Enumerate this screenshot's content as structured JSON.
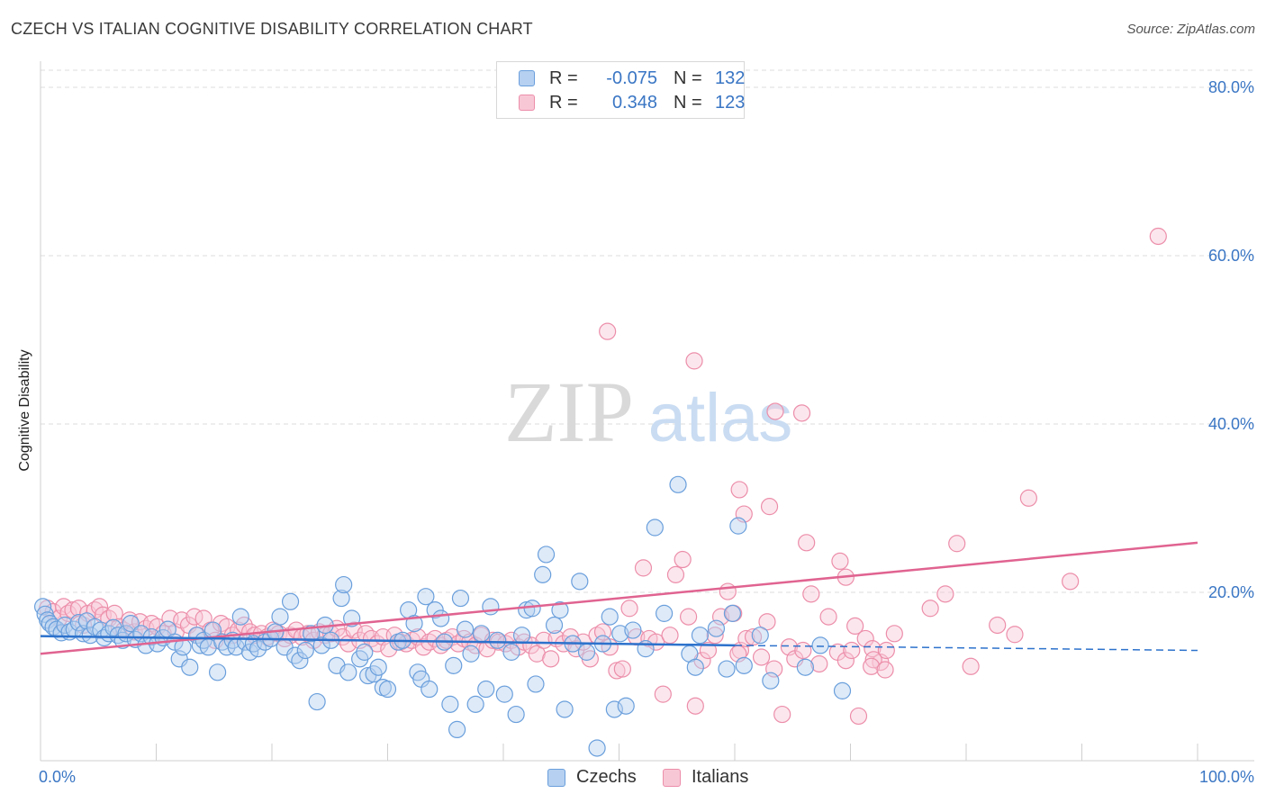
{
  "title": "CZECH VS ITALIAN COGNITIVE DISABILITY CORRELATION CHART",
  "source": "Source: ZipAtlas.com",
  "watermark": {
    "zip": "ZIP",
    "atlas": "atlas"
  },
  "legend": {
    "rows": [
      {
        "r_label": "R =",
        "r_value": "-0.075",
        "n_label": "N =",
        "n_value": "132"
      },
      {
        "r_label": "R =",
        "r_value": "0.348",
        "n_label": "N =",
        "n_value": "123"
      }
    ]
  },
  "bottom_legend": [
    "Czechs",
    "Italians"
  ],
  "colors": {
    "czech_fill": "#b5d0f0",
    "czech_stroke": "#6a9fdc",
    "czech_line": "#2d72cc",
    "italian_fill": "#f8c7d6",
    "italian_stroke": "#ec8eaa",
    "italian_line": "#e06390",
    "tick_label": "#3a76c4",
    "grid": "#dddddd"
  },
  "chart_data": {
    "type": "scatter",
    "title": "CZECH VS ITALIAN COGNITIVE DISABILITY CORRELATION CHART",
    "xlabel": "",
    "ylabel": "Cognitive Disability",
    "xlim": [
      0,
      100
    ],
    "ylim": [
      0,
      80
    ],
    "x_tick_labels": [
      "0.0%",
      "100.0%"
    ],
    "y_ticks": [
      20,
      40,
      60,
      80
    ],
    "y_tick_labels": [
      "20.0%",
      "40.0%",
      "60.0%",
      "80.0%"
    ],
    "grid": true,
    "legend_position": "top-center",
    "series": [
      {
        "name": "Czechs",
        "r": -0.075,
        "n": 132,
        "trend": {
          "x": [
            0,
            60,
            100
          ],
          "y": [
            14.8,
            13.7,
            13.1
          ],
          "solid_until": 60
        },
        "points": [
          [
            0.2,
            18.3
          ],
          [
            0.4,
            17.4
          ],
          [
            0.6,
            16.7
          ],
          [
            0.8,
            16.3
          ],
          [
            1.1,
            15.9
          ],
          [
            1.4,
            15.6
          ],
          [
            1.8,
            15.2
          ],
          [
            2.1,
            16.1
          ],
          [
            2.5,
            15.3
          ],
          [
            2.9,
            15.6
          ],
          [
            3.3,
            16.4
          ],
          [
            3.7,
            15.1
          ],
          [
            4.0,
            16.6
          ],
          [
            4.3,
            14.9
          ],
          [
            4.7,
            15.9
          ],
          [
            5.2,
            15.5
          ],
          [
            5.5,
            14.6
          ],
          [
            5.9,
            15.1
          ],
          [
            6.3,
            15.8
          ],
          [
            6.7,
            14.9
          ],
          [
            7.1,
            14.3
          ],
          [
            7.4,
            15.1
          ],
          [
            7.8,
            16.3
          ],
          [
            8.2,
            14.4
          ],
          [
            8.7,
            15.1
          ],
          [
            9.1,
            13.7
          ],
          [
            9.6,
            14.7
          ],
          [
            10.1,
            13.9
          ],
          [
            10.6,
            14.6
          ],
          [
            11.0,
            15.6
          ],
          [
            11.6,
            14.1
          ],
          [
            12.0,
            12.1
          ],
          [
            12.3,
            13.5
          ],
          [
            12.9,
            11.1
          ],
          [
            13.5,
            14.9
          ],
          [
            13.8,
            13.7
          ],
          [
            14.1,
            14.3
          ],
          [
            14.5,
            13.5
          ],
          [
            14.9,
            15.5
          ],
          [
            15.3,
            10.5
          ],
          [
            15.7,
            14.1
          ],
          [
            16.1,
            13.5
          ],
          [
            16.6,
            14.3
          ],
          [
            16.9,
            13.5
          ],
          [
            17.3,
            17.1
          ],
          [
            17.7,
            14.1
          ],
          [
            18.1,
            12.9
          ],
          [
            18.4,
            13.9
          ],
          [
            18.8,
            13.3
          ],
          [
            19.4,
            14.1
          ],
          [
            19.9,
            14.5
          ],
          [
            20.3,
            15.3
          ],
          [
            20.7,
            17.1
          ],
          [
            21.1,
            13.5
          ],
          [
            21.6,
            18.9
          ],
          [
            22.0,
            12.5
          ],
          [
            22.4,
            11.9
          ],
          [
            22.9,
            13.1
          ],
          [
            23.4,
            15.1
          ],
          [
            23.9,
            7.0
          ],
          [
            24.3,
            13.7
          ],
          [
            24.6,
            16.1
          ],
          [
            25.1,
            14.3
          ],
          [
            25.6,
            11.3
          ],
          [
            26.0,
            19.3
          ],
          [
            26.2,
            20.9
          ],
          [
            26.6,
            10.5
          ],
          [
            26.9,
            16.9
          ],
          [
            27.6,
            12.1
          ],
          [
            28.0,
            12.9
          ],
          [
            28.3,
            10.1
          ],
          [
            28.8,
            10.3
          ],
          [
            29.2,
            11.1
          ],
          [
            29.6,
            8.7
          ],
          [
            30.0,
            8.5
          ],
          [
            30.9,
            14.1
          ],
          [
            31.3,
            14.3
          ],
          [
            31.8,
            17.9
          ],
          [
            32.3,
            16.3
          ],
          [
            32.6,
            10.5
          ],
          [
            32.9,
            9.7
          ],
          [
            33.3,
            19.5
          ],
          [
            33.6,
            8.5
          ],
          [
            34.1,
            17.9
          ],
          [
            34.6,
            16.9
          ],
          [
            34.9,
            14.1
          ],
          [
            35.4,
            6.7
          ],
          [
            35.7,
            11.3
          ],
          [
            36.0,
            3.7
          ],
          [
            36.3,
            19.3
          ],
          [
            36.7,
            15.6
          ],
          [
            37.2,
            12.7
          ],
          [
            37.6,
            6.7
          ],
          [
            38.1,
            15.1
          ],
          [
            38.5,
            8.5
          ],
          [
            38.9,
            18.3
          ],
          [
            39.5,
            14.3
          ],
          [
            40.1,
            7.9
          ],
          [
            40.7,
            12.9
          ],
          [
            41.1,
            5.5
          ],
          [
            41.6,
            14.9
          ],
          [
            42.0,
            17.9
          ],
          [
            42.5,
            18.1
          ],
          [
            42.8,
            9.1
          ],
          [
            43.4,
            22.1
          ],
          [
            43.7,
            24.5
          ],
          [
            44.4,
            16.1
          ],
          [
            44.9,
            17.9
          ],
          [
            45.3,
            6.1
          ],
          [
            46.0,
            13.9
          ],
          [
            46.6,
            21.3
          ],
          [
            47.2,
            12.9
          ],
          [
            48.1,
            1.5
          ],
          [
            48.6,
            13.9
          ],
          [
            49.2,
            17.1
          ],
          [
            49.6,
            6.1
          ],
          [
            50.1,
            15.1
          ],
          [
            50.6,
            6.5
          ],
          [
            51.2,
            15.5
          ],
          [
            52.3,
            13.3
          ],
          [
            53.1,
            27.7
          ],
          [
            53.9,
            17.5
          ],
          [
            55.1,
            32.8
          ],
          [
            56.1,
            12.7
          ],
          [
            56.6,
            11.1
          ],
          [
            57.0,
            14.9
          ],
          [
            58.4,
            15.7
          ],
          [
            59.3,
            10.9
          ],
          [
            59.8,
            17.5
          ],
          [
            60.3,
            27.9
          ],
          [
            60.8,
            11.3
          ],
          [
            62.2,
            14.9
          ],
          [
            63.1,
            9.5
          ],
          [
            66.1,
            11.1
          ],
          [
            67.4,
            13.7
          ],
          [
            69.3,
            8.3
          ]
        ]
      },
      {
        "name": "Italians",
        "r": 0.348,
        "n": 123,
        "trend": {
          "x": [
            0,
            100
          ],
          "y": [
            12.7,
            25.9
          ]
        },
        "points": [
          [
            0.6,
            18.1
          ],
          [
            1.1,
            17.7
          ],
          [
            1.6,
            16.9
          ],
          [
            2.0,
            18.3
          ],
          [
            2.4,
            17.5
          ],
          [
            2.8,
            17.9
          ],
          [
            3.3,
            18.1
          ],
          [
            3.7,
            16.1
          ],
          [
            4.1,
            17.5
          ],
          [
            4.7,
            17.9
          ],
          [
            5.1,
            18.3
          ],
          [
            5.4,
            17.3
          ],
          [
            5.9,
            16.9
          ],
          [
            6.4,
            17.5
          ],
          [
            6.8,
            15.9
          ],
          [
            7.2,
            15.5
          ],
          [
            7.7,
            16.7
          ],
          [
            8.1,
            15.3
          ],
          [
            8.6,
            16.5
          ],
          [
            9.1,
            15.7
          ],
          [
            9.6,
            16.3
          ],
          [
            10.1,
            15.9
          ],
          [
            10.6,
            15.1
          ],
          [
            11.2,
            16.9
          ],
          [
            11.7,
            15.3
          ],
          [
            12.2,
            16.7
          ],
          [
            12.8,
            16.1
          ],
          [
            13.3,
            17.1
          ],
          [
            13.6,
            14.9
          ],
          [
            14.1,
            16.9
          ],
          [
            14.7,
            15.5
          ],
          [
            15.1,
            14.3
          ],
          [
            15.6,
            16.3
          ],
          [
            16.1,
            15.9
          ],
          [
            16.6,
            14.9
          ],
          [
            17.1,
            15.5
          ],
          [
            17.6,
            16.1
          ],
          [
            18.1,
            15.3
          ],
          [
            18.5,
            14.9
          ],
          [
            19.1,
            15.1
          ],
          [
            19.6,
            14.7
          ],
          [
            20.1,
            15.5
          ],
          [
            20.6,
            15.1
          ],
          [
            21.1,
            14.5
          ],
          [
            21.6,
            14.9
          ],
          [
            22.1,
            15.5
          ],
          [
            22.6,
            14.7
          ],
          [
            23.1,
            15.1
          ],
          [
            23.6,
            14.3
          ],
          [
            24.1,
            15.3
          ],
          [
            24.6,
            14.9
          ],
          [
            25.1,
            15.1
          ],
          [
            25.6,
            15.7
          ],
          [
            26.1,
            14.7
          ],
          [
            26.6,
            13.9
          ],
          [
            27.1,
            15.5
          ],
          [
            27.6,
            14.3
          ],
          [
            28.1,
            15.1
          ],
          [
            28.6,
            14.5
          ],
          [
            29.1,
            13.9
          ],
          [
            29.6,
            14.7
          ],
          [
            30.1,
            13.3
          ],
          [
            30.6,
            14.9
          ],
          [
            31.1,
            14.1
          ],
          [
            31.6,
            13.9
          ],
          [
            32.1,
            14.3
          ],
          [
            32.6,
            14.7
          ],
          [
            33.1,
            13.5
          ],
          [
            33.6,
            14.1
          ],
          [
            34.1,
            14.5
          ],
          [
            34.6,
            13.7
          ],
          [
            35.1,
            14.3
          ],
          [
            35.6,
            14.7
          ],
          [
            36.1,
            13.9
          ],
          [
            36.6,
            14.5
          ],
          [
            37.1,
            14.1
          ],
          [
            37.6,
            13.7
          ],
          [
            38.1,
            14.9
          ],
          [
            38.6,
            13.3
          ],
          [
            39.1,
            14.3
          ],
          [
            39.6,
            14.1
          ],
          [
            40.2,
            13.9
          ],
          [
            40.7,
            14.3
          ],
          [
            41.3,
            13.5
          ],
          [
            41.8,
            14.1
          ],
          [
            42.4,
            13.7
          ],
          [
            42.9,
            12.7
          ],
          [
            43.5,
            14.3
          ],
          [
            44.1,
            12.1
          ],
          [
            44.6,
            14.5
          ],
          [
            45.2,
            13.9
          ],
          [
            45.8,
            14.7
          ],
          [
            46.3,
            13.3
          ],
          [
            46.9,
            14.1
          ],
          [
            47.5,
            12.1
          ],
          [
            48.1,
            14.9
          ],
          [
            48.6,
            15.3
          ],
          [
            49.2,
            13.5
          ],
          [
            49.8,
            10.7
          ],
          [
            50.3,
            10.9
          ],
          [
            50.9,
            18.1
          ],
          [
            51.5,
            14.7
          ],
          [
            52.1,
            22.9
          ],
          [
            52.6,
            14.5
          ],
          [
            53.2,
            14.1
          ],
          [
            53.8,
            7.9
          ],
          [
            54.4,
            14.9
          ],
          [
            54.9,
            22.1
          ],
          [
            55.5,
            23.9
          ],
          [
            56.0,
            17.1
          ],
          [
            56.6,
            6.5
          ],
          [
            57.2,
            11.9
          ],
          [
            57.7,
            13.1
          ],
          [
            58.3,
            14.9
          ],
          [
            58.8,
            17.1
          ],
          [
            59.4,
            20.1
          ],
          [
            59.9,
            17.5
          ],
          [
            60.5,
            13.1
          ],
          [
            61.0,
            14.5
          ],
          [
            61.6,
            14.7
          ],
          [
            62.3,
            12.3
          ],
          [
            62.8,
            16.5
          ],
          [
            63.4,
            10.9
          ],
          [
            64.1,
            5.5
          ],
          [
            64.7,
            13.5
          ],
          [
            65.2,
            12.1
          ],
          [
            65.9,
            13.1
          ],
          [
            66.6,
            19.8
          ],
          [
            67.3,
            11.5
          ],
          [
            68.1,
            17.1
          ],
          [
            68.9,
            12.9
          ],
          [
            69.6,
            11.9
          ],
          [
            70.1,
            13.1
          ],
          [
            70.7,
            5.3
          ],
          [
            71.3,
            14.5
          ],
          [
            71.9,
            13.3
          ],
          [
            72.6,
            11.7
          ],
          [
            73.1,
            13.1
          ],
          [
            73.8,
            15.1
          ]
        ],
        "extra_points": [
          [
            49.0,
            51.0
          ],
          [
            56.5,
            47.5
          ],
          [
            60.4,
            32.2
          ],
          [
            60.8,
            29.3
          ],
          [
            63.0,
            30.2
          ],
          [
            63.5,
            41.5
          ],
          [
            65.8,
            41.3
          ],
          [
            66.2,
            25.9
          ],
          [
            69.1,
            23.7
          ],
          [
            69.6,
            21.8
          ],
          [
            70.4,
            16.0
          ],
          [
            72.0,
            12.0
          ],
          [
            76.9,
            18.1
          ],
          [
            78.2,
            19.8
          ],
          [
            79.2,
            25.8
          ],
          [
            80.4,
            11.2
          ],
          [
            82.7,
            16.1
          ],
          [
            84.2,
            15.0
          ],
          [
            85.4,
            31.2
          ],
          [
            89.0,
            21.3
          ],
          [
            96.6,
            62.3
          ],
          [
            60.3,
            12.7
          ],
          [
            71.8,
            11.2
          ],
          [
            73.0,
            10.8
          ]
        ]
      }
    ]
  }
}
